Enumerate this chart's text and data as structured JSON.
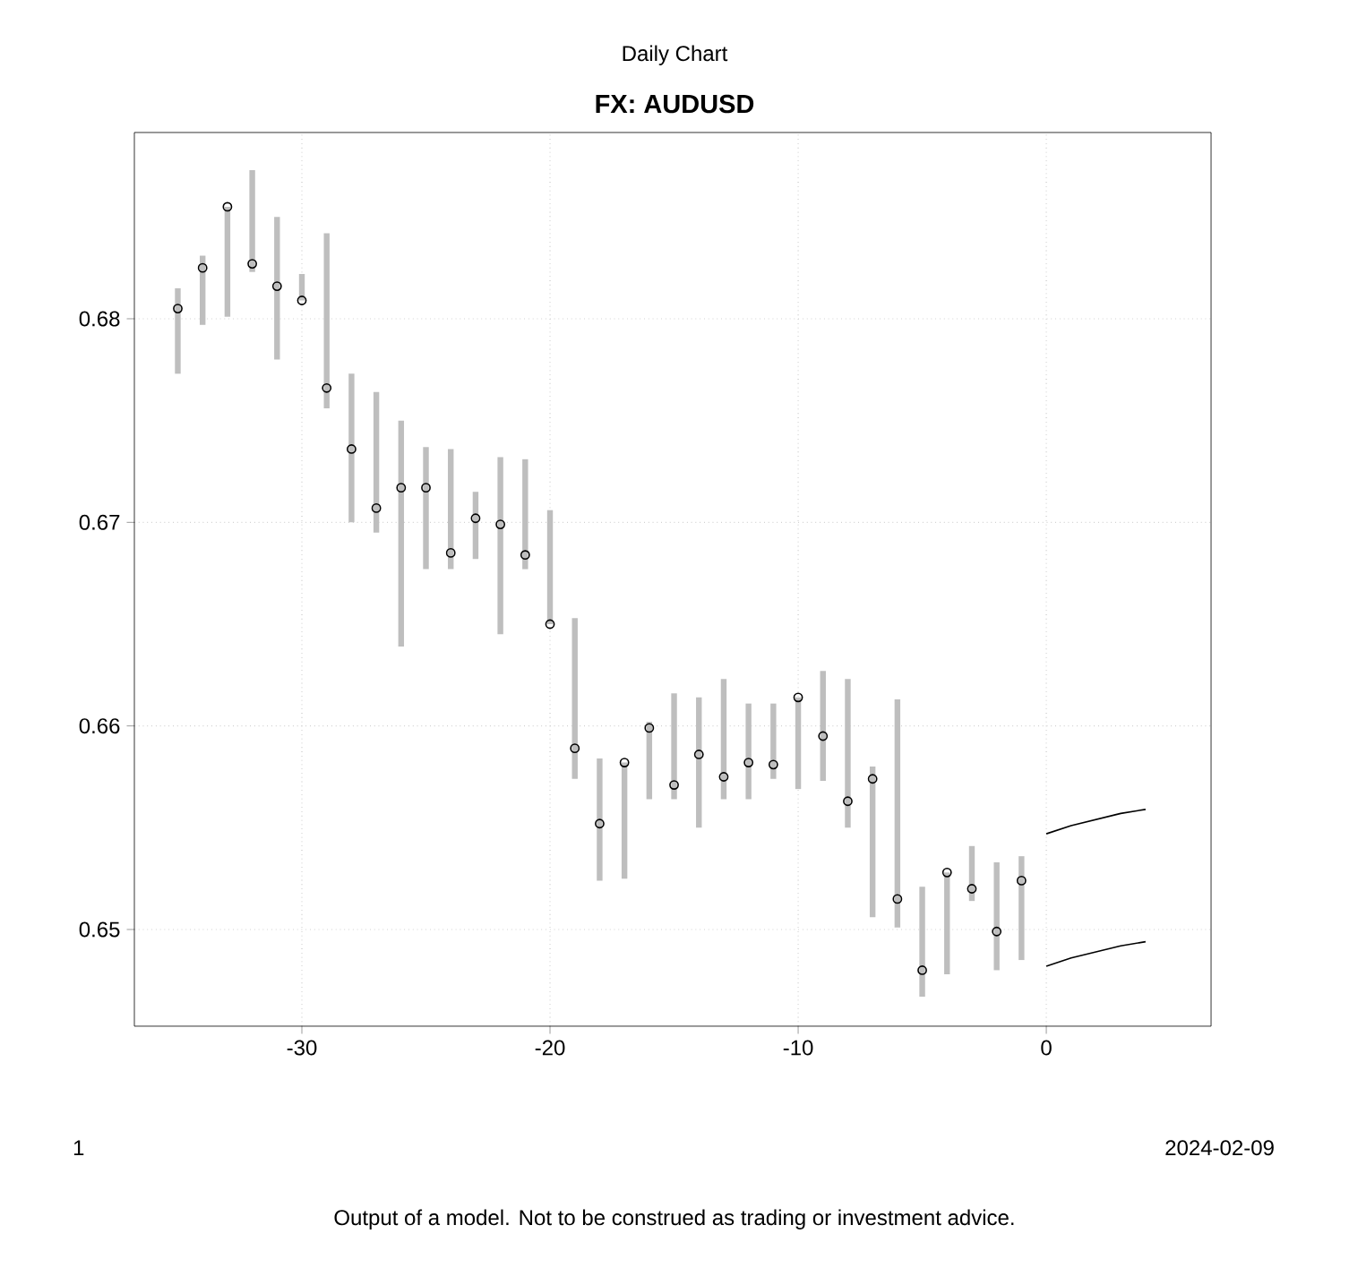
{
  "chart_data": {
    "type": "scatter",
    "subtitle": "Daily Chart",
    "title": "FX: AUDUSD",
    "annotations": [
      "1",
      "2024-02-09",
      "Output of a model. Not to be construed as trading or investment advice."
    ],
    "xlim": [
      -36.75,
      6.64
    ],
    "ylim": [
      0.64525,
      0.68915
    ],
    "xticks": [
      -30,
      -20,
      -10,
      0
    ],
    "yticks": [
      0.65,
      0.66,
      0.67,
      0.68
    ],
    "grid": true,
    "x": [
      -35,
      -34,
      -33,
      -32,
      -31,
      -30,
      -29,
      -28,
      -27,
      -26,
      -25,
      -24,
      -23,
      -22,
      -21,
      -20,
      -19,
      -18,
      -17,
      -16,
      -15,
      -14,
      -13,
      -12,
      -11,
      -10,
      -9,
      -8,
      -7,
      -6,
      -5,
      -4,
      -3,
      -2,
      -1
    ],
    "series": [
      {
        "type": "bar",
        "color": "#bebebe",
        "base": [
          0.6773,
          0.6797,
          0.6801,
          0.6823,
          0.678,
          0.6809,
          0.6756,
          0.67,
          0.6695,
          0.6639,
          0.6677,
          0.6677,
          0.6682,
          0.6645,
          0.6677,
          0.665,
          0.6574,
          0.6524,
          0.6525,
          0.6564,
          0.6564,
          0.655,
          0.6564,
          0.6564,
          0.6574,
          0.6569,
          0.6573,
          0.655,
          0.6506,
          0.6501,
          0.6467,
          0.6478,
          0.6514,
          0.648,
          0.6485
        ],
        "values": [
          0.0042,
          0.0034,
          0.0054,
          0.005,
          0.007,
          0.0013,
          0.0086,
          0.0073,
          0.0069,
          0.0111,
          0.006,
          0.0059,
          0.0033,
          0.0087,
          0.0054,
          0.0056,
          0.0079,
          0.006,
          0.0057,
          0.0038,
          0.0052,
          0.0064,
          0.0059,
          0.0047,
          0.0037,
          0.0045,
          0.0054,
          0.0073,
          0.0074,
          0.0112,
          0.0054,
          0.005,
          0.0027,
          0.0053,
          0.0051
        ]
      },
      {
        "marker": "circle",
        "color": "#000000",
        "values": [
          0.6805,
          0.6825,
          0.6855,
          0.6827,
          0.6816,
          0.6809,
          0.6766,
          0.6736,
          0.6707,
          0.6717,
          0.6717,
          0.6685,
          0.6702,
          0.6699,
          0.6684,
          0.665,
          0.6589,
          0.6552,
          0.6582,
          0.6599,
          0.6571,
          0.6586,
          0.6575,
          0.6582,
          0.6581,
          0.6614,
          0.6595,
          0.6563,
          0.6574,
          0.6515,
          0.648,
          0.6528,
          0.652,
          0.6499,
          0.6524
        ]
      },
      {
        "type": "line",
        "color": "#000000",
        "x": [
          0,
          1,
          2,
          3,
          4
        ],
        "values": [
          0.6547,
          0.6551,
          0.6554,
          0.6557,
          0.6559
        ]
      },
      {
        "type": "line",
        "color": "#000000",
        "x": [
          0,
          1,
          2,
          3,
          4
        ],
        "values": [
          0.6482,
          0.6486,
          0.6489,
          0.6492,
          0.6494
        ]
      }
    ]
  }
}
